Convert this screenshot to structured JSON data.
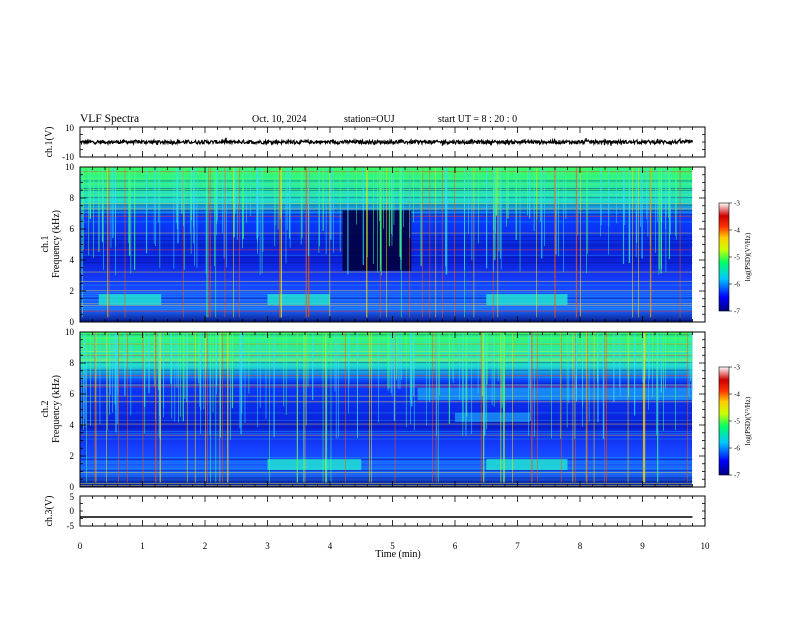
{
  "header": {
    "title": "VLF Spectra",
    "date": "Oct. 10, 2024",
    "station": "station=OUJ",
    "start": "start  UT =  8 : 20 : 0"
  },
  "chart_data": [
    {
      "type": "line",
      "panel": "ch1-waveform",
      "ylabel": "ch.1(V)",
      "ylim": [
        -10,
        10
      ],
      "y_ticklabels": [
        "10",
        "-10"
      ],
      "xlim": [
        0,
        10
      ],
      "series": [
        {
          "x": [
            0,
            9.8
          ],
          "values": [
            0,
            0
          ],
          "amplitude_V": 1.2
        }
      ]
    },
    {
      "type": "heatmap",
      "panel": "ch1-spectrogram",
      "ylabel": "ch.1\nFrequency (kHz)",
      "ylim": [
        0,
        10
      ],
      "y_ticklabels": [
        "0",
        "2",
        "4",
        "6",
        "8",
        "10"
      ],
      "xlim": [
        0,
        10
      ],
      "data_end_min": 9.8,
      "colorbar": {
        "label": "log(PSD)(V²/Hz)",
        "range": [
          -7,
          -3
        ],
        "ticklabels": [
          "-3",
          "-4",
          "-5",
          "-6",
          "-7"
        ],
        "colors": [
          "#000080",
          "#0000ff",
          "#00c8ff",
          "#00ff66",
          "#ccff00",
          "#ffcc00",
          "#ff3300",
          "#cc0000",
          "#ffffff"
        ]
      },
      "features": [
        {
          "name": "quiet-band",
          "t": [
            4.2,
            5.3
          ],
          "f": [
            3.3,
            7.2
          ]
        },
        {
          "name": "hiss-band",
          "t": [
            6.5,
            7.8
          ],
          "f": [
            1.1,
            1.8
          ]
        },
        {
          "name": "hiss-band",
          "t": [
            3.0,
            4.0
          ],
          "f": [
            1.1,
            1.8
          ]
        },
        {
          "name": "hiss-band",
          "t": [
            0.3,
            1.3
          ],
          "f": [
            1.1,
            1.8
          ]
        }
      ]
    },
    {
      "type": "heatmap",
      "panel": "ch2-spectrogram",
      "ylabel": "ch.2\nFrequency (kHz)",
      "ylim": [
        0,
        10
      ],
      "y_ticklabels": [
        "0",
        "2",
        "4",
        "6",
        "8",
        "10"
      ],
      "xlim": [
        0,
        10
      ],
      "data_end_min": 9.8,
      "colorbar": {
        "label": "log(PSD)(V²/Hz)",
        "range": [
          -7,
          -3
        ],
        "ticklabels": [
          "-3",
          "-4",
          "-5",
          "-6",
          "-7"
        ],
        "colors": [
          "#000080",
          "#0000ff",
          "#00c8ff",
          "#00ff66",
          "#ccff00",
          "#ffcc00",
          "#ff3300",
          "#cc0000",
          "#ffffff"
        ]
      },
      "features": [
        {
          "name": "hiss-band",
          "t": [
            6.5,
            7.8
          ],
          "f": [
            1.1,
            1.8
          ]
        },
        {
          "name": "hiss-band",
          "t": [
            3.0,
            4.5
          ],
          "f": [
            1.1,
            1.8
          ]
        },
        {
          "name": "emission",
          "t": [
            5.4,
            9.8
          ],
          "f": [
            5.6,
            6.4
          ]
        },
        {
          "name": "emission",
          "t": [
            6.0,
            7.2
          ],
          "f": [
            4.2,
            4.8
          ]
        }
      ]
    },
    {
      "type": "line",
      "panel": "ch3-waveform",
      "ylabel": "ch.3(V)",
      "ylim": [
        -5,
        5
      ],
      "y_ticklabels": [
        "5",
        "0",
        "-5"
      ],
      "xlim": [
        0,
        10
      ],
      "xlabel": "Time (min)",
      "x_ticklabels": [
        "0",
        "1",
        "2",
        "3",
        "4",
        "5",
        "6",
        "7",
        "8",
        "9",
        "10"
      ],
      "series": [
        {
          "x": [
            0,
            9.8
          ],
          "values": [
            -2.0,
            -2.0
          ]
        }
      ]
    }
  ]
}
